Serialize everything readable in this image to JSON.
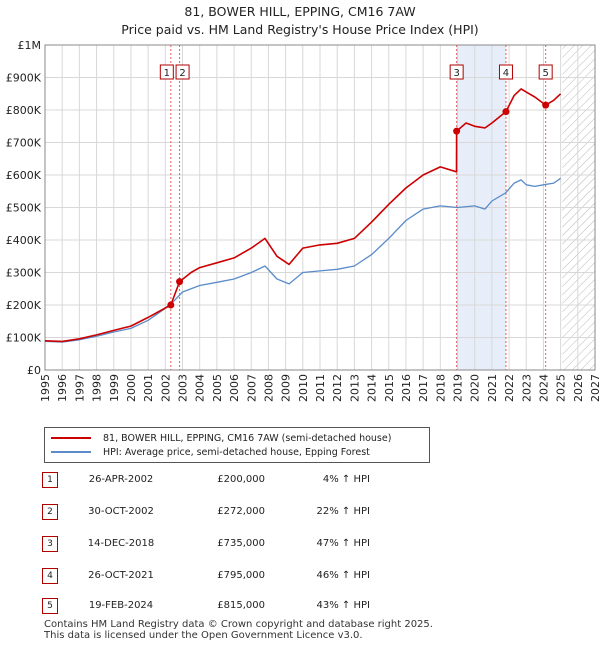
{
  "title": "81, BOWER HILL, EPPING, CM16 7AW",
  "subtitle": "Price paid vs. HM Land Registry's House Price Index (HPI)",
  "colors": {
    "property": "#cc0000",
    "hpi": "#5b8bc9",
    "shade": "#e8eef9",
    "marker_line": "#e06060"
  },
  "legend": {
    "property_label": "81, BOWER HILL, EPPING, CM16 7AW (semi-detached house)",
    "hpi_label": "HPI: Average price, semi-detached house, Epping Forest"
  },
  "sales": [
    {
      "num": "1",
      "date": "26-APR-2002",
      "price": "£200,000",
      "hpi": "4% ↑ HPI"
    },
    {
      "num": "2",
      "date": "30-OCT-2002",
      "price": "£272,000",
      "hpi": "22% ↑ HPI"
    },
    {
      "num": "3",
      "date": "14-DEC-2018",
      "price": "£735,000",
      "hpi": "47% ↑ HPI"
    },
    {
      "num": "4",
      "date": "26-OCT-2021",
      "price": "£795,000",
      "hpi": "46% ↑ HPI"
    },
    {
      "num": "5",
      "date": "19-FEB-2024",
      "price": "£815,000",
      "hpi": "43% ↑ HPI"
    }
  ],
  "footer": {
    "line1": "Contains HM Land Registry data © Crown copyright and database right 2025.",
    "line2": "This data is licensed under the Open Government Licence v3.0."
  },
  "chart_data": {
    "type": "line",
    "xlim": [
      1995,
      2027
    ],
    "ylim": [
      0,
      1000000
    ],
    "y_ticks": [
      0,
      100000,
      200000,
      300000,
      400000,
      500000,
      600000,
      700000,
      800000,
      900000,
      1000000
    ],
    "y_tick_labels": [
      "£0",
      "£100K",
      "£200K",
      "£300K",
      "£400K",
      "£500K",
      "£600K",
      "£700K",
      "£800K",
      "£900K",
      "£1M"
    ],
    "x_ticks": [
      "1995",
      "1996",
      "1997",
      "1998",
      "1999",
      "2000",
      "2001",
      "2002",
      "2003",
      "2004",
      "2005",
      "2006",
      "2007",
      "2008",
      "2009",
      "2010",
      "2011",
      "2012",
      "2013",
      "2014",
      "2015",
      "2016",
      "2017",
      "2018",
      "2019",
      "2020",
      "2021",
      "2022",
      "2023",
      "2024",
      "2025",
      "2026",
      "2027"
    ],
    "shaded_ranges": [
      [
        2018.95,
        2021.82
      ]
    ],
    "forecast_start": 2025.1,
    "sale_markers": [
      {
        "label": "1",
        "x": 2002.32,
        "y": 200000
      },
      {
        "label": "2",
        "x": 2002.83,
        "y": 272000
      },
      {
        "label": "3",
        "x": 2018.95,
        "y": 735000
      },
      {
        "label": "4",
        "x": 2021.82,
        "y": 795000
      },
      {
        "label": "5",
        "x": 2024.13,
        "y": 815000
      }
    ],
    "series": [
      {
        "name": "81, BOWER HILL, EPPING, CM16 7AW (semi-detached house)",
        "x": [
          1995,
          1996,
          1997,
          1998,
          1999,
          2000,
          2001,
          2002.32,
          2002.83,
          2003.5,
          2004,
          2005,
          2006,
          2007,
          2007.8,
          2008.5,
          2009.2,
          2010,
          2011,
          2012,
          2013,
          2014,
          2015,
          2016,
          2017,
          2018,
          2018.94,
          2018.95,
          2019.5,
          2020,
          2020.6,
          2021,
          2021.82,
          2022.3,
          2022.7,
          2023,
          2023.5,
          2024.13,
          2024.6,
          2025
        ],
        "values": [
          90000,
          88000,
          96000,
          108000,
          122000,
          135000,
          162000,
          200000,
          272000,
          300000,
          315000,
          330000,
          345000,
          375000,
          405000,
          350000,
          325000,
          375000,
          385000,
          390000,
          405000,
          455000,
          510000,
          560000,
          600000,
          625000,
          610000,
          735000,
          760000,
          750000,
          745000,
          760000,
          795000,
          845000,
          865000,
          855000,
          840000,
          815000,
          830000,
          850000
        ]
      },
      {
        "name": "HPI: Average price, semi-detached house, Epping Forest",
        "x": [
          1995,
          1996,
          1997,
          1998,
          1999,
          2000,
          2001,
          2002,
          2002.5,
          2003,
          2004,
          2005,
          2006,
          2007,
          2007.8,
          2008.5,
          2009.2,
          2010,
          2011,
          2012,
          2013,
          2014,
          2015,
          2016,
          2017,
          2018,
          2019,
          2020,
          2020.6,
          2021,
          2021.8,
          2022.3,
          2022.7,
          2023,
          2023.5,
          2024,
          2024.6,
          2025
        ],
        "values": [
          88000,
          86000,
          93000,
          104000,
          117000,
          128000,
          153000,
          190000,
          212000,
          240000,
          260000,
          270000,
          280000,
          300000,
          320000,
          280000,
          265000,
          300000,
          305000,
          310000,
          320000,
          355000,
          405000,
          460000,
          495000,
          505000,
          500000,
          505000,
          495000,
          520000,
          545000,
          575000,
          585000,
          570000,
          565000,
          570000,
          575000,
          590000
        ]
      }
    ]
  }
}
